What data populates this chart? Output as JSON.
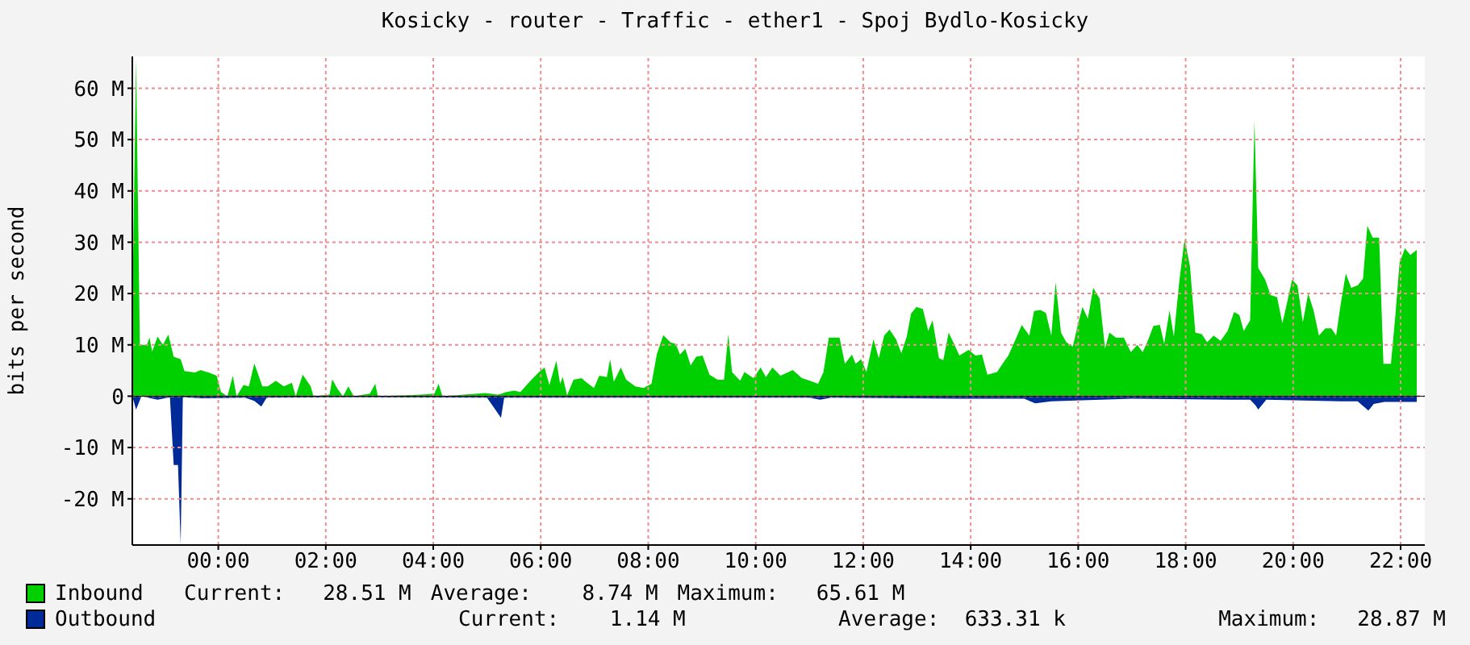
{
  "chart_data": {
    "type": "area",
    "title": "Kosicky - router - Traffic - ether1 - Spoj Bydlo-Kosicky",
    "ylabel": "bits per second",
    "xlim": [
      -1.6,
      22.45
    ],
    "xticks": [
      {
        "value": 0,
        "label": "00:00"
      },
      {
        "value": 2,
        "label": "02:00"
      },
      {
        "value": 4,
        "label": "04:00"
      },
      {
        "value": 6,
        "label": "06:00"
      },
      {
        "value": 8,
        "label": "08:00"
      },
      {
        "value": 10,
        "label": "10:00"
      },
      {
        "value": 12,
        "label": "12:00"
      },
      {
        "value": 14,
        "label": "14:00"
      },
      {
        "value": 16,
        "label": "16:00"
      },
      {
        "value": 18,
        "label": "18:00"
      },
      {
        "value": 20,
        "label": "20:00"
      },
      {
        "value": 22,
        "label": "22:00"
      }
    ],
    "ylim": [
      -29,
      66.2
    ],
    "yticks": [
      {
        "value": -20,
        "label": "-20 M"
      },
      {
        "value": -10,
        "label": "-10 M"
      },
      0,
      {
        "value": 10,
        "label": "10 M"
      },
      {
        "value": 20,
        "label": "20 M"
      },
      {
        "value": 30,
        "label": "30 M"
      },
      {
        "value": 40,
        "label": "40 M"
      },
      {
        "value": 50,
        "label": "50 M"
      },
      {
        "value": 60,
        "label": "60 M"
      }
    ],
    "grid": true,
    "legend": "bottom",
    "series": [
      {
        "name": "Inbound",
        "color": "#00cf00",
        "x": [
          -1.6,
          -1.53,
          -1.46,
          -1.33,
          -1.28,
          -1.23,
          -1.13,
          -1.03,
          -0.93,
          -0.83,
          -0.7,
          -0.63,
          -0.43,
          -0.33,
          -0.18,
          -0.03,
          0.05,
          0.17,
          0.27,
          0.34,
          0.47,
          0.57,
          0.67,
          0.82,
          0.92,
          1.07,
          1.22,
          1.37,
          1.44,
          1.57,
          1.72,
          1.77,
          2.07,
          2.12,
          2.22,
          2.32,
          2.42,
          2.52,
          2.82,
          2.92,
          2.97,
          3.77,
          4.02,
          4.1,
          4.17,
          4.97,
          5.21,
          5.36,
          5.51,
          5.62,
          5.81,
          5.96,
          6.07,
          6.16,
          6.29,
          6.36,
          6.41,
          6.49,
          6.61,
          6.76,
          6.86,
          6.99,
          7.09,
          7.23,
          7.29,
          7.36,
          7.49,
          7.59,
          7.76,
          7.91,
          8.06,
          8.16,
          8.28,
          8.41,
          8.51,
          8.59,
          8.69,
          8.79,
          8.89,
          9.01,
          9.14,
          9.29,
          9.41,
          9.49,
          9.56,
          9.71,
          9.79,
          9.96,
          10.09,
          10.19,
          10.31,
          10.46,
          10.69,
          10.86,
          11.01,
          11.16,
          11.26,
          11.36,
          11.56,
          11.66,
          11.79,
          11.86,
          11.96,
          12.06,
          12.19,
          12.29,
          12.39,
          12.49,
          12.61,
          12.71,
          12.81,
          12.89,
          12.99,
          13.11,
          13.21,
          13.29,
          13.41,
          13.49,
          13.59,
          13.69,
          13.79,
          13.96,
          14.09,
          14.21,
          14.31,
          14.49,
          14.61,
          14.7,
          14.85,
          14.95,
          15.09,
          15.18,
          15.3,
          15.4,
          15.5,
          15.58,
          15.68,
          15.78,
          15.9,
          16.0,
          16.08,
          16.18,
          16.28,
          16.4,
          16.5,
          16.58,
          16.7,
          16.85,
          16.98,
          17.1,
          17.2,
          17.3,
          17.4,
          17.52,
          17.6,
          17.7,
          17.78,
          17.88,
          17.98,
          18.08,
          18.18,
          18.3,
          18.4,
          18.52,
          18.65,
          18.78,
          18.9,
          19.0,
          19.08,
          19.2,
          19.28,
          19.35,
          19.48,
          19.58,
          19.7,
          19.8,
          19.88,
          19.98,
          20.08,
          20.18,
          20.28,
          20.38,
          20.48,
          20.6,
          20.71,
          20.8,
          20.88,
          20.98,
          21.08,
          21.2,
          21.3,
          21.38,
          21.48,
          21.6,
          21.68,
          21.82,
          21.9,
          21.98,
          22.08,
          22.18,
          22.3
        ],
        "values": [
          16.6,
          65.6,
          10,
          10,
          11.4,
          8.7,
          11.6,
          10,
          12,
          7.7,
          7.2,
          4.9,
          4.6,
          5.1,
          4.6,
          4,
          0.8,
          0,
          4,
          0,
          2.2,
          1.9,
          6.4,
          1.9,
          1.9,
          3,
          1.9,
          2.6,
          0,
          4.2,
          1.9,
          0,
          0.3,
          3.3,
          1.4,
          0,
          1.9,
          0,
          0.5,
          2.4,
          0,
          0.3,
          0.5,
          2.4,
          0,
          0.6,
          0.3,
          0.8,
          1.1,
          0.8,
          3,
          4.6,
          5.6,
          2.2,
          6.9,
          2.4,
          3.7,
          0.2,
          3.2,
          3.5,
          2.6,
          1.6,
          4,
          3.7,
          7.2,
          2.8,
          5.6,
          3.2,
          1.9,
          1.6,
          2.4,
          8.2,
          11.9,
          10.5,
          10.2,
          8.1,
          9.2,
          6,
          7.7,
          7.9,
          4.2,
          3.2,
          3.2,
          12.1,
          4.7,
          3,
          4.7,
          3.5,
          5.6,
          3.7,
          5.6,
          4,
          5.1,
          3.5,
          3,
          2.4,
          4.7,
          11.4,
          11.4,
          6.3,
          8.1,
          6.3,
          7.2,
          4.7,
          11.1,
          7.4,
          11.8,
          13,
          11.1,
          8.4,
          11.6,
          16.1,
          17.4,
          17,
          12.7,
          14.8,
          7.4,
          7,
          12.4,
          10.2,
          7.9,
          9,
          7.9,
          8.1,
          4.2,
          4.7,
          6.6,
          7.9,
          11.4,
          13.9,
          11.8,
          16.6,
          16.8,
          16.2,
          11.8,
          22.2,
          12.4,
          10.5,
          9.7,
          14.2,
          17.4,
          15.1,
          21.1,
          19,
          9.3,
          12.4,
          11.4,
          11.4,
          8.6,
          10,
          8.6,
          10.9,
          13.7,
          13.9,
          10.2,
          16.7,
          11.6,
          22.2,
          30.6,
          25.3,
          12.4,
          12.1,
          10.5,
          11.8,
          10.8,
          12.7,
          16.4,
          15.8,
          12.7,
          14.8,
          53.7,
          25,
          22.7,
          19.7,
          19.3,
          14.2,
          17.9,
          22.7,
          21.6,
          14.4,
          20,
          16.7,
          11.8,
          13.2,
          13.2,
          11.8,
          17.6,
          23.9,
          21.1,
          21.6,
          22.9,
          33.2,
          30.9,
          30.9,
          6.3,
          6.3,
          15.5,
          26,
          28.8,
          27.5,
          28.5
        ]
      },
      {
        "name": "Outbound",
        "color": "#002a97",
        "x": [
          -1.6,
          -1.53,
          -1.43,
          -1.13,
          -0.9,
          -0.83,
          -0.75,
          -0.7,
          -0.66,
          -0.3,
          0.5,
          0.67,
          0.8,
          0.9,
          2.5,
          5.0,
          5.26,
          5.32,
          8,
          11.0,
          11.2,
          11.4,
          13.8,
          15.0,
          15.2,
          15.5,
          17.0,
          19.2,
          19.3,
          19.35,
          19.5,
          20.9,
          21.2,
          21.4,
          21.5,
          21.7,
          22.3
        ],
        "values": [
          0,
          -2.6,
          0,
          -0.7,
          -0.2,
          -13.4,
          -13.4,
          -28.9,
          -0.2,
          -0.4,
          -0.3,
          -0.9,
          -2,
          -0.3,
          -0.2,
          -0.3,
          -4.2,
          -0.3,
          -0.3,
          -0.3,
          -0.7,
          -0.3,
          -0.5,
          -0.5,
          -1.4,
          -1,
          -0.5,
          -0.7,
          -1.8,
          -2.6,
          -0.7,
          -1,
          -1,
          -2.8,
          -1.5,
          -1.1,
          -1.1
        ]
      }
    ],
    "annotations": [
      "Current:   28.51 M",
      "Average:    8.74 M",
      "Maximum:   65.61 M",
      "Current:    1.14 M",
      "Average:  633.31 k",
      "Maximum:   28.87 M"
    ]
  }
}
